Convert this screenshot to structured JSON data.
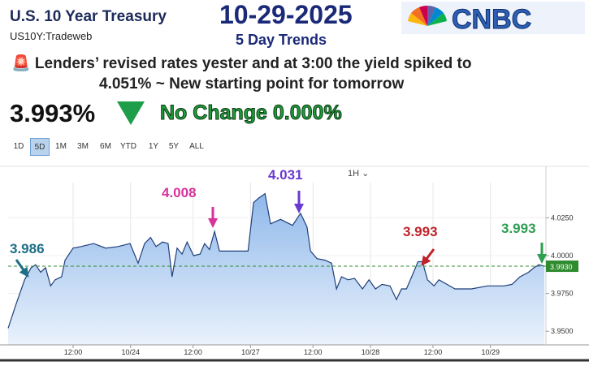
{
  "header": {
    "title": "U.S. 10 Year Treasury",
    "source": "US10Y:Tradeweb",
    "date": "10-29-2025",
    "subtitle": "5 Day Trends",
    "logo": "CNBC",
    "note": [
      "🚨 Lenders’ revised rates yester and at 3:00 the yield spiked to",
      "4.051% ~ New starting point for tomorrow"
    ],
    "price": "3.993%",
    "change": "No Change 0.000%"
  },
  "ranges": {
    "buttons": [
      "1D",
      "5D",
      "1M",
      "3M",
      "6M",
      "YTD",
      "1Y",
      "5Y",
      "ALL"
    ],
    "selected": "5D",
    "interval": "1H"
  },
  "chart_data": {
    "type": "area",
    "x": [
      0,
      1.6,
      3.3,
      4.6,
      5.5,
      6.5,
      7.5,
      8.5,
      9.4,
      10.7,
      11.4,
      13.0,
      14.6,
      17.1,
      19.5,
      22.0,
      24.4,
      26.0,
      27.3,
      28.5,
      29.6,
      30.9,
      32.0,
      32.8,
      33.8,
      34.8,
      35.8,
      37.1,
      38.4,
      39.3,
      40.3,
      41.3,
      42.3,
      45.5,
      48.0,
      49.1,
      50.1,
      51.4,
      52.5,
      54.5,
      56.9,
      58.5,
      59.8,
      60.5,
      61.8,
      63.4,
      64.7,
      65.7,
      66.7,
      68.0,
      69.3,
      70.9,
      72.2,
      73.5,
      74.8,
      76.4,
      77.7,
      78.7,
      79.7,
      81.0,
      82.0,
      82.9,
      83.9,
      85.2,
      86.2,
      87.8,
      89.4,
      92.7,
      95.9,
      99.2,
      100.8,
      102.4,
      104.1,
      105.2,
      106.2,
      107.3
    ],
    "series": [
      {
        "name": "US10Y",
        "color": "#1f3f7a",
        "values": [
          3.952,
          3.968,
          3.984,
          3.992,
          3.994,
          3.989,
          3.992,
          3.98,
          3.984,
          3.986,
          3.997,
          4.005,
          4.006,
          4.008,
          4.005,
          4.006,
          4.008,
          3.995,
          4.008,
          4.012,
          4.006,
          4.009,
          4.008,
          3.986,
          4.005,
          4.001,
          4.009,
          4.0,
          4.001,
          4.008,
          4.004,
          4.016,
          4.003,
          4.003,
          4.003,
          4.035,
          4.038,
          4.041,
          4.021,
          4.024,
          4.02,
          4.028,
          4.019,
          4.003,
          3.998,
          3.997,
          3.995,
          3.978,
          3.986,
          3.984,
          3.985,
          3.978,
          3.984,
          3.978,
          3.981,
          3.98,
          3.971,
          3.978,
          3.978,
          3.988,
          3.996,
          3.996,
          3.984,
          3.98,
          3.984,
          3.981,
          3.978,
          3.978,
          3.98,
          3.98,
          3.981,
          3.986,
          3.989,
          3.992,
          3.994,
          3.993
        ]
      }
    ],
    "xlim": [
      0,
      107.6
    ],
    "xticks": [
      {
        "value": 13,
        "label": "12:00"
      },
      {
        "value": 24.5,
        "label": "10/24"
      },
      {
        "value": 37,
        "label": "12:00"
      },
      {
        "value": 48.5,
        "label": "10/27"
      },
      {
        "value": 61,
        "label": "12:00"
      },
      {
        "value": 72.5,
        "label": "10/28"
      },
      {
        "value": 85,
        "label": "12:00"
      },
      {
        "value": 96.5,
        "label": "10/29"
      }
    ],
    "ylim": [
      3.941,
      4.059
    ],
    "yticks": [
      {
        "value": 4.025,
        "label": "4.0250"
      },
      {
        "value": 4.0,
        "label": "4.0000"
      },
      {
        "value": 3.975,
        "label": "3.9750"
      },
      {
        "value": 3.95,
        "label": "3.9500"
      }
    ],
    "reference_line": {
      "value": 3.993,
      "label": "3.9930",
      "color": "#2e8b2e"
    },
    "grid": true,
    "annotations": [
      {
        "text": "3.986",
        "color": "#1d6f86"
      },
      {
        "text": "4.008",
        "color": "#d6349a"
      },
      {
        "text": "4.031",
        "color": "#6a3ad0"
      },
      {
        "text": "3.993",
        "color": "#c0222a"
      },
      {
        "text": "3.993",
        "color": "#2e9e52"
      }
    ]
  }
}
